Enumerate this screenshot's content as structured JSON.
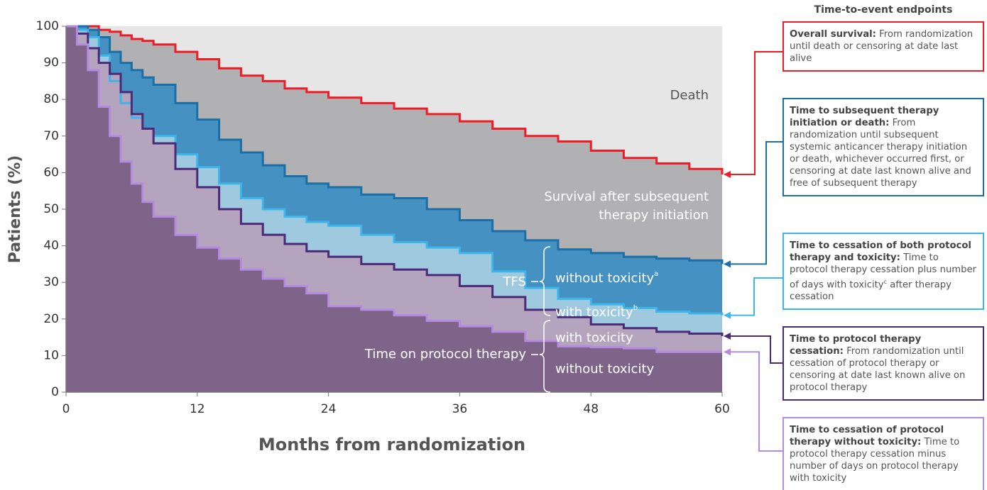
{
  "chart_data": {
    "type": "step-area",
    "xlabel": "Months from randomization",
    "ylabel": "Patients (%)",
    "background": "#e6e6e6",
    "x": [
      0,
      1,
      2,
      3,
      4,
      5,
      6,
      7,
      8,
      10,
      12,
      14,
      16,
      18,
      20,
      22,
      24,
      27,
      30,
      33,
      36,
      39,
      42,
      45,
      48,
      51,
      54,
      57,
      60
    ],
    "series": [
      {
        "color": "#ee1c25",
        "fill": "#b1b1b3",
        "values": [
          100,
          100,
          100,
          99,
          98.5,
          97.5,
          96.5,
          96,
          95,
          93,
          91,
          88.5,
          86.5,
          85,
          83,
          82,
          80.5,
          79,
          77.5,
          76,
          74,
          72,
          70,
          68.5,
          66,
          64,
          62.5,
          61,
          59.5
        ]
      },
      {
        "color": "#1b6ea6",
        "fill": "#4591c1",
        "values": [
          100,
          100,
          99,
          97,
          93,
          90,
          88,
          86,
          84,
          79,
          74.5,
          69,
          65.5,
          62,
          59,
          57,
          56,
          54,
          53,
          50,
          47,
          44,
          41.5,
          39,
          38,
          37,
          36.5,
          36,
          35
        ]
      },
      {
        "color": "#3db5e8",
        "fill": "#9fc9df",
        "values": [
          100,
          99,
          97,
          92,
          85,
          79,
          75,
          72,
          70,
          65,
          61.5,
          57,
          53,
          50,
          48,
          46.5,
          45.5,
          43,
          41,
          39.5,
          38,
          33,
          28.5,
          25.5,
          24,
          23,
          22,
          21.5,
          21
        ]
      },
      {
        "color": "#4b2a78",
        "fill": "#b4a4be",
        "values": [
          100,
          98,
          94,
          90,
          87,
          82,
          76,
          72,
          68,
          61,
          56,
          50,
          46,
          43,
          40.5,
          38.5,
          37,
          35,
          33.5,
          32,
          29,
          26,
          22.5,
          20.5,
          18.5,
          17.5,
          16.5,
          16,
          15.3
        ]
      },
      {
        "color": "#b58be2",
        "fill": "#7d6488",
        "values": [
          100,
          95,
          88,
          78,
          70,
          63,
          57,
          52,
          48,
          43,
          39.5,
          36.5,
          33.5,
          31,
          29,
          27,
          23.5,
          22.5,
          21,
          19.5,
          18,
          16.5,
          14,
          12.5,
          12.3,
          12,
          11,
          11,
          11
        ]
      }
    ],
    "xlim": [
      0,
      60
    ],
    "xticks": [
      0,
      12,
      24,
      36,
      48,
      60
    ],
    "ylim": [
      0,
      100
    ],
    "yticks": [
      0,
      10,
      20,
      30,
      40,
      50,
      60,
      70,
      80,
      90,
      100
    ],
    "annotations": [
      {
        "text": "Death"
      },
      {
        "text": "Survival after subsequent"
      },
      {
        "text": "therapy initiation"
      },
      {
        "text": "TFS"
      },
      {
        "text": "without toxicity",
        "sup": "a"
      },
      {
        "text": "with toxicity",
        "sup": "b"
      },
      {
        "text": "with toxicity"
      },
      {
        "text": "Time on protocol therapy"
      },
      {
        "text": "without toxicity"
      }
    ]
  },
  "endpoints": {
    "title": "Time-to-event endpoints",
    "items": [
      {
        "name": "Overall survival:",
        "text": "From randomization until death or censoring at date last alive"
      },
      {
        "name": "Time to subsequent therapy initiation or death:",
        "text": "From randomization until subsequent systemic anticancer therapy initiation or death, whichever occurred first, or censoring at date last known alive and free of subsequent therapy"
      },
      {
        "name": "Time to cessation of both protocol therapy and toxicity:",
        "text": "Time to protocol therapy cessation plus number of days with toxicity",
        "sup": "c",
        "text_after": "after therapy cessation"
      },
      {
        "name": "Time to protocol therapy cessation:",
        "text": "From randomization until cessation of protocol therapy or censoring at date last known alive on protocol therapy"
      },
      {
        "name": "Time to cessation of protocol therapy without toxicity:",
        "text": "Time to protocol therapy cessation minus number of days on protocol therapy with toxicity"
      }
    ]
  }
}
